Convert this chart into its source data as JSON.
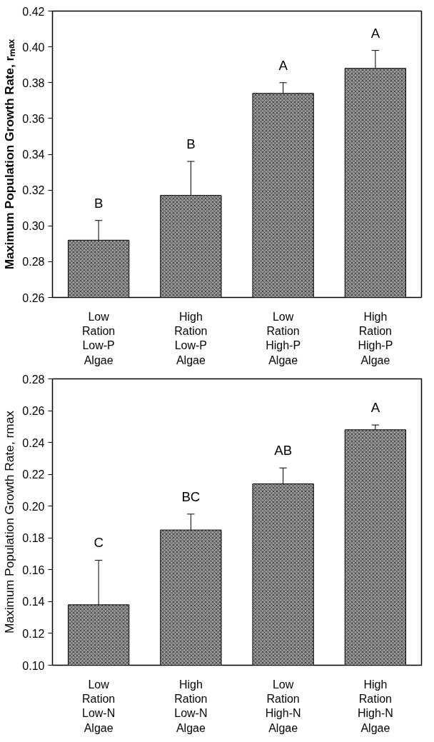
{
  "chart_data": [
    {
      "type": "bar",
      "ylabel": "Maximum Population Growth Rate, rₘₐₓ",
      "categories": [
        "Low\nRation\nLow-P\nAlgae",
        "High\nRation\nLow-P\nAlgae",
        "Low\nRation\nHigh-P\nAlgae",
        "High\nRation\nHigh-P\nAlgae"
      ],
      "series": [
        {
          "color": "#9a9a9a",
          "values": [
            0.292,
            0.317,
            0.374,
            0.388
          ],
          "errors": [
            [
              0.292,
              0.303
            ],
            [
              0.317,
              0.336
            ],
            [
              0.374,
              0.38
            ],
            [
              0.388,
              0.398
            ]
          ]
        }
      ],
      "ylim": [
        0.26,
        0.42
      ],
      "yticks": [
        {
          "value": 0.26,
          "label": "0.26"
        },
        {
          "value": 0.28,
          "label": "0.28"
        },
        {
          "value": 0.3,
          "label": "0.30"
        },
        {
          "value": 0.32,
          "label": "0.32"
        },
        {
          "value": 0.34,
          "label": "0.34"
        },
        {
          "value": 0.36,
          "label": "0.36"
        },
        {
          "value": 0.38,
          "label": "0.38"
        },
        {
          "value": 0.4,
          "label": "0.40"
        },
        {
          "value": 0.42,
          "label": "0.42"
        }
      ],
      "grid": false,
      "annotations": [
        "B",
        "B",
        "A",
        "A"
      ]
    },
    {
      "type": "bar",
      "ylabel": "Maximum Population Growth Rate, rmax",
      "categories": [
        "Low\nRation\nLow-N\nAlgae",
        "High\nRation\nLow-N\nAlgae",
        "Low\nRation\nHigh-N\nAlgae",
        "High\nRation\nHigh-N\nAlgae"
      ],
      "series": [
        {
          "color": "#9a9a9a",
          "values": [
            0.138,
            0.185,
            0.214,
            0.248
          ],
          "errors": [
            [
              0.138,
              0.166
            ],
            [
              0.185,
              0.195
            ],
            [
              0.214,
              0.224
            ],
            [
              0.248,
              0.251
            ]
          ]
        }
      ],
      "ylim": [
        0.1,
        0.28
      ],
      "yticks": [
        {
          "value": 0.1,
          "label": "0.10"
        },
        {
          "value": 0.12,
          "label": "0.12"
        },
        {
          "value": 0.14,
          "label": "0.14"
        },
        {
          "value": 0.16,
          "label": "0.16"
        },
        {
          "value": 0.18,
          "label": "0.18"
        },
        {
          "value": 0.2,
          "label": "0.20"
        },
        {
          "value": 0.22,
          "label": "0.22"
        },
        {
          "value": 0.24,
          "label": "0.24"
        },
        {
          "value": 0.26,
          "label": "0.26"
        },
        {
          "value": 0.28,
          "label": "0.28"
        }
      ],
      "grid": false,
      "annotations": [
        "C",
        "BC",
        "AB",
        "A"
      ]
    }
  ]
}
